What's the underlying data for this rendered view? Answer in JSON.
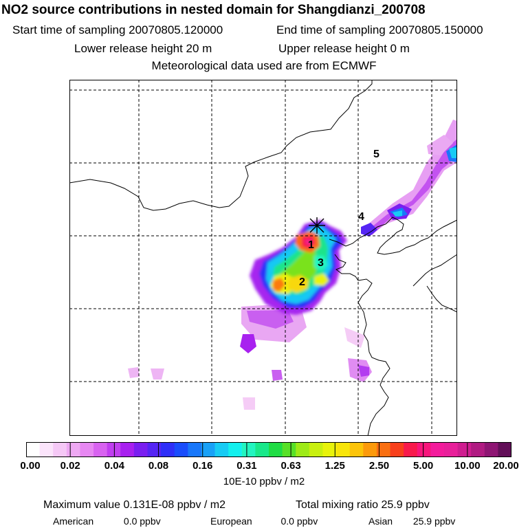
{
  "header": {
    "title": "NO2 source contributions in nested domain for Shangdianzi_200708",
    "start": "Start time of sampling 20070805.120000",
    "end": "End time of sampling 20070805.150000",
    "lower": "Lower release height   20 m",
    "upper": "Upper release height    0 m",
    "met": "Meteorological data used are from ECMWF"
  },
  "chart_data": {
    "type": "heatmap",
    "title": "NO2 source contributions in nested domain for Shangdianzi_200708",
    "colorbar": {
      "ticks": [
        "0.00",
        "0.02",
        "0.04",
        "0.08",
        "0.16",
        "0.31",
        "0.63",
        "1.25",
        "2.50",
        "5.00",
        "10.00",
        "20.00"
      ],
      "unit": "10E-10 ppbv / m2",
      "colors": [
        "#ffffff",
        "#fbe4fb",
        "#f5c8f6",
        "#eea9f3",
        "#e788f2",
        "#d863f0",
        "#c13ef0",
        "#a821ef",
        "#7a1ff0",
        "#5525f4",
        "#2f2ff8",
        "#1a4dfc",
        "#1977fa",
        "#19a1f7",
        "#18cbf4",
        "#14f0ee",
        "#23f5c0",
        "#19e88a",
        "#20dc45",
        "#58e028",
        "#9eea18",
        "#c9f010",
        "#e8f30b",
        "#f8e50a",
        "#fcc40a",
        "#fc9a0c",
        "#f96f12",
        "#f8401c",
        "#f81a4c",
        "#f8157c",
        "#f31c9c",
        "#e8209a",
        "#cf1d90",
        "#b01b82",
        "#8e1573",
        "#620f58"
      ]
    },
    "region_labels": [
      "1",
      "2",
      "3",
      "4",
      "5"
    ],
    "maximum": "Maximum value  0.131E-08 ppbv / m2",
    "total": "Total mixing ratio      25.9 ppbv",
    "sectors": [
      {
        "name": "American",
        "value": "0.0 ppbv"
      },
      {
        "name": "European",
        "value": "0.0 ppbv"
      },
      {
        "name": "Asian",
        "value": "25.9 ppbv"
      }
    ]
  }
}
